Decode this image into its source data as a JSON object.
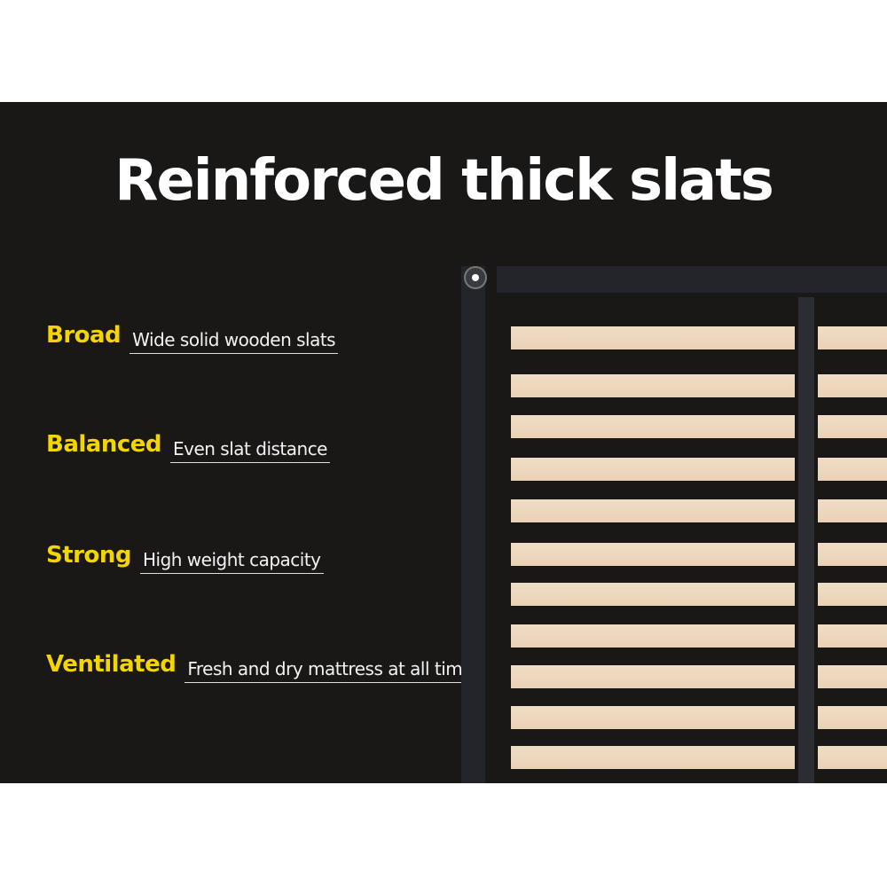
{
  "title": "Reinforced thick slats",
  "features": [
    {
      "key": "Broad",
      "value": "Wide solid wooden slats"
    },
    {
      "key": "Balanced",
      "value": "Even slat distance"
    },
    {
      "key": "Strong",
      "value": "High weight capacity"
    },
    {
      "key": "Ventilated",
      "value": "Fresh and dry mattress at all times"
    }
  ],
  "colors": {
    "background": "#1a1817",
    "accent": "#f4d500",
    "slat": "#eed8bf"
  }
}
